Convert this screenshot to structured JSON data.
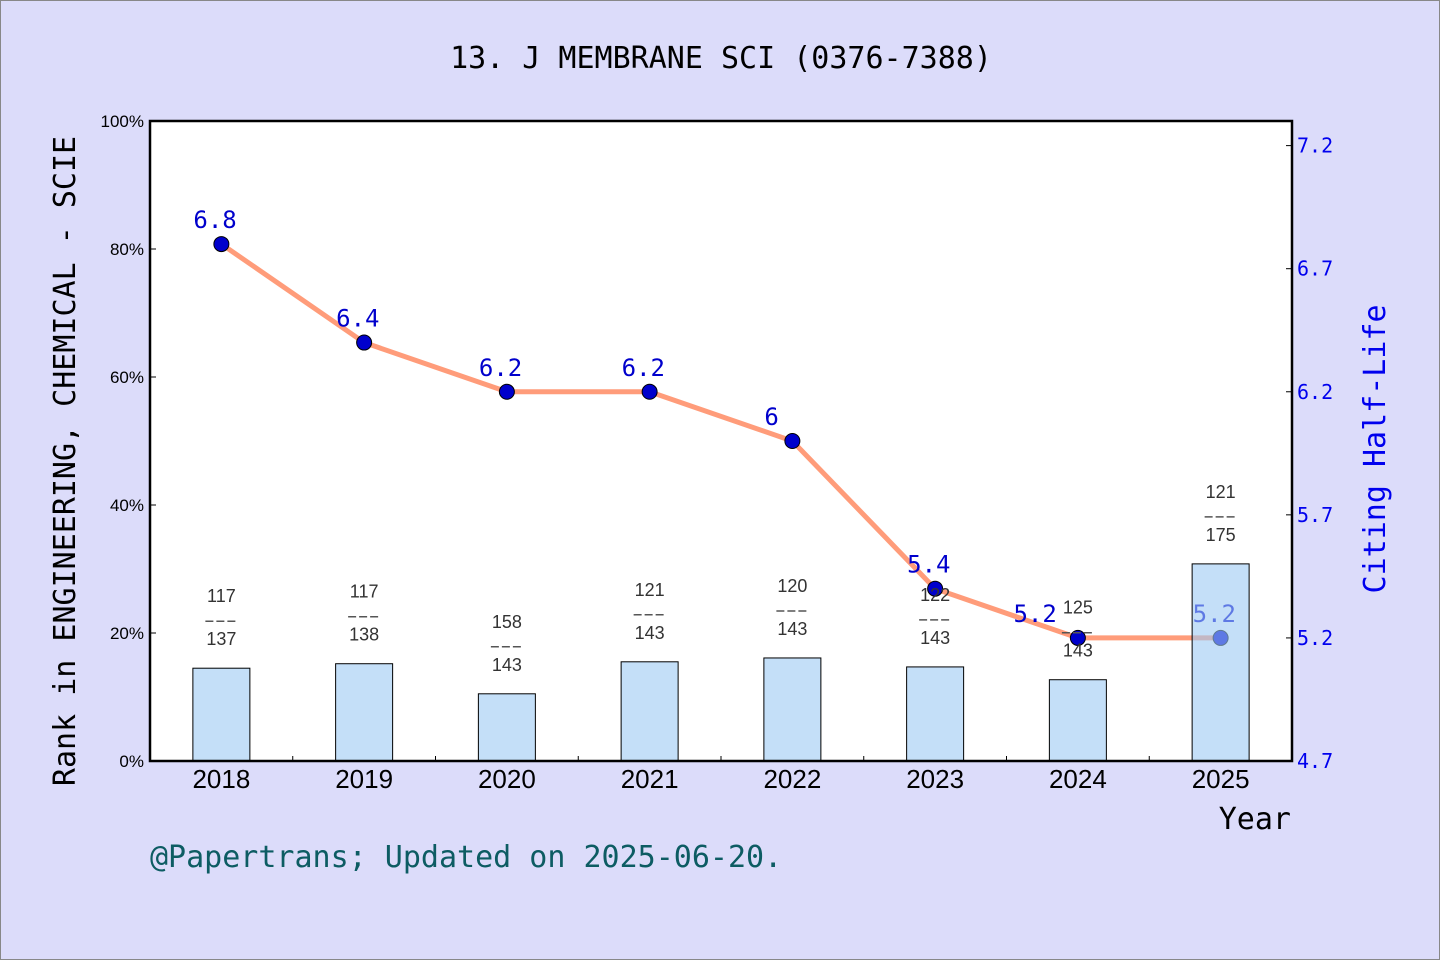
{
  "chart_data": {
    "type": "bar+line",
    "title": "13. J MEMBRANE SCI (0376-7388)",
    "xlabel": "Year",
    "ylabel_left": "Rank in ENGINEERING, CHEMICAL - SCIE",
    "ylabel_right": "Citing Half-Life",
    "categories": [
      "2018",
      "2019",
      "2020",
      "2021",
      "2022",
      "2023",
      "2024",
      "2025"
    ],
    "left_ticks": [
      "0%",
      "20%",
      "40%",
      "60%",
      "80%",
      "100%"
    ],
    "ylim_left": [
      0,
      100
    ],
    "right_ticks": [
      "4.7",
      "5.2",
      "5.7",
      "6.2",
      "6.7",
      "7.2"
    ],
    "ylim_right": [
      4.7,
      7.3
    ],
    "bars": {
      "values_percent": [
        14.5,
        15.2,
        10.5,
        15.5,
        16.1,
        14.7,
        12.7,
        30.8
      ],
      "rank": [
        "117",
        "117",
        "158",
        "121",
        "120",
        "122",
        "125",
        "121"
      ],
      "total": [
        "137",
        "138",
        "143",
        "143",
        "143",
        "143",
        "143",
        "175"
      ],
      "color": "#c5e0f7"
    },
    "line": {
      "values": [
        6.8,
        6.4,
        6.2,
        6.2,
        6.0,
        5.4,
        5.2,
        5.2
      ],
      "labels": [
        "6.8",
        "6.4",
        "6.2",
        "6.2",
        "6",
        "5.4",
        "5.2",
        "5.2"
      ],
      "line_color": "#ff9c7a",
      "marker_color": "#0000cc"
    },
    "grid": false
  },
  "footer": "@Papertrans; Updated on 2025-06-20."
}
